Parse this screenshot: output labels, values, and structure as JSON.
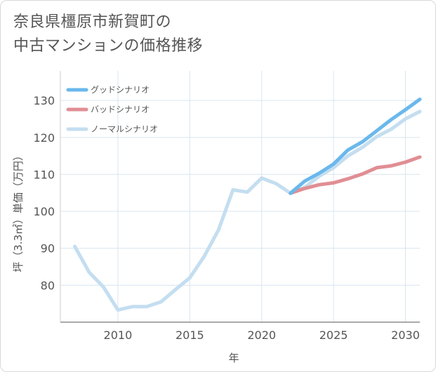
{
  "title_line1": "奈良県橿原市新賀町の",
  "title_line2": "中古マンションの価格推移",
  "chart_data": {
    "type": "line",
    "title": "奈良県橿原市新賀町の中古マンションの価格推移",
    "xlabel": "年",
    "ylabel": "坪（3.3㎡）単価（万円）",
    "xlim": [
      2006,
      2031
    ],
    "ylim": [
      70,
      138
    ],
    "xticks": [
      2010,
      2015,
      2020,
      2025,
      2030
    ],
    "yticks": [
      80,
      90,
      100,
      110,
      120,
      130
    ],
    "series": [
      {
        "name": "ノーマルシナリオ",
        "color": "#c4def0",
        "x": [
          2007,
          2008,
          2009,
          2010,
          2011,
          2012,
          2013,
          2014,
          2015,
          2016,
          2017,
          2018,
          2019,
          2020,
          2021,
          2022,
          2023,
          2024,
          2025,
          2026,
          2027,
          2028,
          2029,
          2030,
          2031
        ],
        "values": [
          90.5,
          83.5,
          79.5,
          73.3,
          74.2,
          74.2,
          75.5,
          78.8,
          82.0,
          87.8,
          95.0,
          105.8,
          105.2,
          109.0,
          107.5,
          104.9,
          106.5,
          109.5,
          111.8,
          115.0,
          117.3,
          120.2,
          122.2,
          125.0,
          127.0
        ]
      },
      {
        "name": "グッドシナリオ",
        "color": "#6ab8ec",
        "x": [
          2022,
          2023,
          2024,
          2025,
          2026,
          2027,
          2028,
          2029,
          2030,
          2031
        ],
        "values": [
          104.9,
          108.2,
          110.3,
          112.8,
          116.6,
          118.8,
          121.8,
          124.8,
          127.5,
          130.3
        ]
      },
      {
        "name": "バッドシナリオ",
        "color": "#e08e94",
        "x": [
          2022,
          2023,
          2024,
          2025,
          2026,
          2027,
          2028,
          2029,
          2030,
          2031
        ],
        "values": [
          104.9,
          106.2,
          107.2,
          107.7,
          108.8,
          110.1,
          111.8,
          112.3,
          113.3,
          114.7
        ]
      }
    ],
    "legend": [
      "グッドシナリオ",
      "バッドシナリオ",
      "ノーマルシナリオ"
    ],
    "legend_position": "top-left",
    "grid": true
  }
}
